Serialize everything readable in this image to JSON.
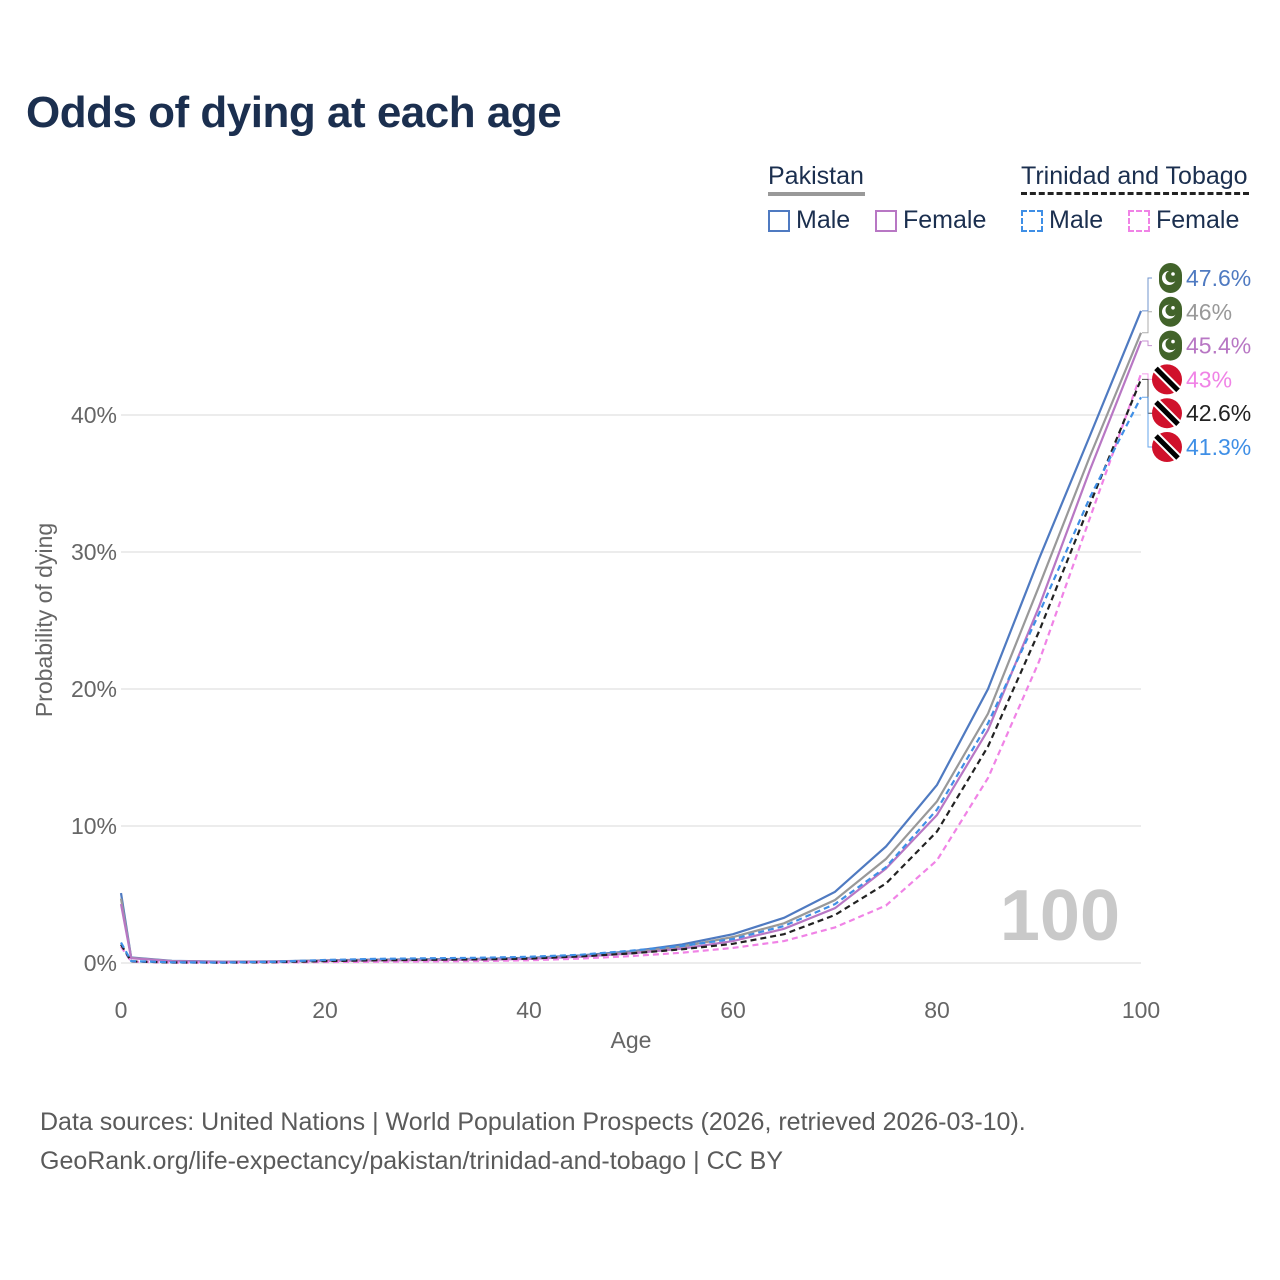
{
  "title": "Odds of dying at each age",
  "legend": {
    "groups": [
      {
        "name": "Pakistan",
        "line_color": "#999999",
        "dashed": false,
        "items": [
          {
            "label": "Male",
            "color": "#4f7ac1"
          },
          {
            "label": "Female",
            "color": "#b877c4"
          }
        ]
      },
      {
        "name": "Trinidad and Tobago",
        "line_color": "#222222",
        "dashed": true,
        "items": [
          {
            "label": "Male",
            "color": "#3f8fe6"
          },
          {
            "label": "Female",
            "color": "#f083e6"
          }
        ]
      }
    ]
  },
  "chart_data": {
    "type": "line",
    "xlabel": "Age",
    "ylabel": "Probability of dying",
    "xlim": [
      0,
      100
    ],
    "ylim": [
      0,
      50
    ],
    "xticks": [
      0,
      20,
      40,
      60,
      80,
      100
    ],
    "yticks": [
      0,
      10,
      20,
      30,
      40
    ],
    "ytick_labels": [
      "0%",
      "10%",
      "20%",
      "30%",
      "40%"
    ],
    "grid": true,
    "watermark": "100",
    "x": [
      0,
      1,
      5,
      10,
      15,
      20,
      25,
      30,
      35,
      40,
      45,
      50,
      55,
      60,
      65,
      70,
      75,
      80,
      85,
      90,
      95,
      100
    ],
    "series": [
      {
        "name": "Pakistan Male",
        "country": "Pakistan",
        "sex": "Male",
        "color": "#4f7ac1",
        "dashed": false,
        "end_label": "47.6%",
        "values": [
          5.1,
          0.4,
          0.15,
          0.1,
          0.12,
          0.2,
          0.25,
          0.28,
          0.3,
          0.38,
          0.55,
          0.85,
          1.35,
          2.1,
          3.3,
          5.2,
          8.5,
          13.0,
          20.0,
          29.5,
          38.5,
          47.6
        ]
      },
      {
        "name": "Pakistan Both",
        "country": "Pakistan",
        "sex": "Both",
        "color": "#999999",
        "dashed": false,
        "end_label": "46%",
        "values": [
          4.7,
          0.38,
          0.14,
          0.09,
          0.11,
          0.18,
          0.22,
          0.25,
          0.27,
          0.34,
          0.5,
          0.78,
          1.2,
          1.9,
          2.9,
          4.6,
          7.6,
          11.8,
          18.2,
          27.5,
          37.0,
          46.0
        ]
      },
      {
        "name": "Pakistan Female",
        "country": "Pakistan",
        "sex": "Female",
        "color": "#b877c4",
        "dashed": false,
        "end_label": "45.4%",
        "values": [
          4.3,
          0.35,
          0.13,
          0.08,
          0.1,
          0.15,
          0.18,
          0.21,
          0.24,
          0.3,
          0.45,
          0.7,
          1.05,
          1.6,
          2.5,
          4.0,
          6.9,
          10.8,
          17.0,
          26.0,
          36.0,
          45.4
        ]
      },
      {
        "name": "Trinidad and Tobago Female",
        "country": "Trinidad and Tobago",
        "sex": "Female",
        "color": "#f083e6",
        "dashed": true,
        "end_label": "43%",
        "values": [
          1.2,
          0.1,
          0.03,
          0.02,
          0.04,
          0.07,
          0.09,
          0.11,
          0.14,
          0.2,
          0.32,
          0.5,
          0.75,
          1.1,
          1.6,
          2.6,
          4.2,
          7.5,
          13.5,
          22.0,
          32.5,
          43.0
        ]
      },
      {
        "name": "Trinidad and Tobago Both",
        "country": "Trinidad and Tobago",
        "sex": "Both",
        "color": "#222222",
        "dashed": true,
        "end_label": "42.6%",
        "values": [
          1.35,
          0.12,
          0.04,
          0.03,
          0.06,
          0.14,
          0.2,
          0.23,
          0.26,
          0.32,
          0.48,
          0.7,
          1.0,
          1.4,
          2.1,
          3.5,
          5.8,
          9.6,
          15.8,
          24.2,
          33.5,
          42.6
        ]
      },
      {
        "name": "Trinidad and Tobago Male",
        "country": "Trinidad and Tobago",
        "sex": "Male",
        "color": "#3f8fe6",
        "dashed": true,
        "end_label": "41.3%",
        "values": [
          1.5,
          0.14,
          0.05,
          0.04,
          0.09,
          0.22,
          0.3,
          0.34,
          0.38,
          0.45,
          0.6,
          0.9,
          1.25,
          1.75,
          2.7,
          4.3,
          7.0,
          11.2,
          17.5,
          25.5,
          34.0,
          41.3
        ]
      }
    ]
  },
  "source": {
    "line1": "Data sources: United Nations | World Population Prospects (2026, retrieved 2026-03-10).",
    "line2": "GeoRank.org/life-expectancy/pakistan/trinidad-and-tobago | CC BY"
  }
}
